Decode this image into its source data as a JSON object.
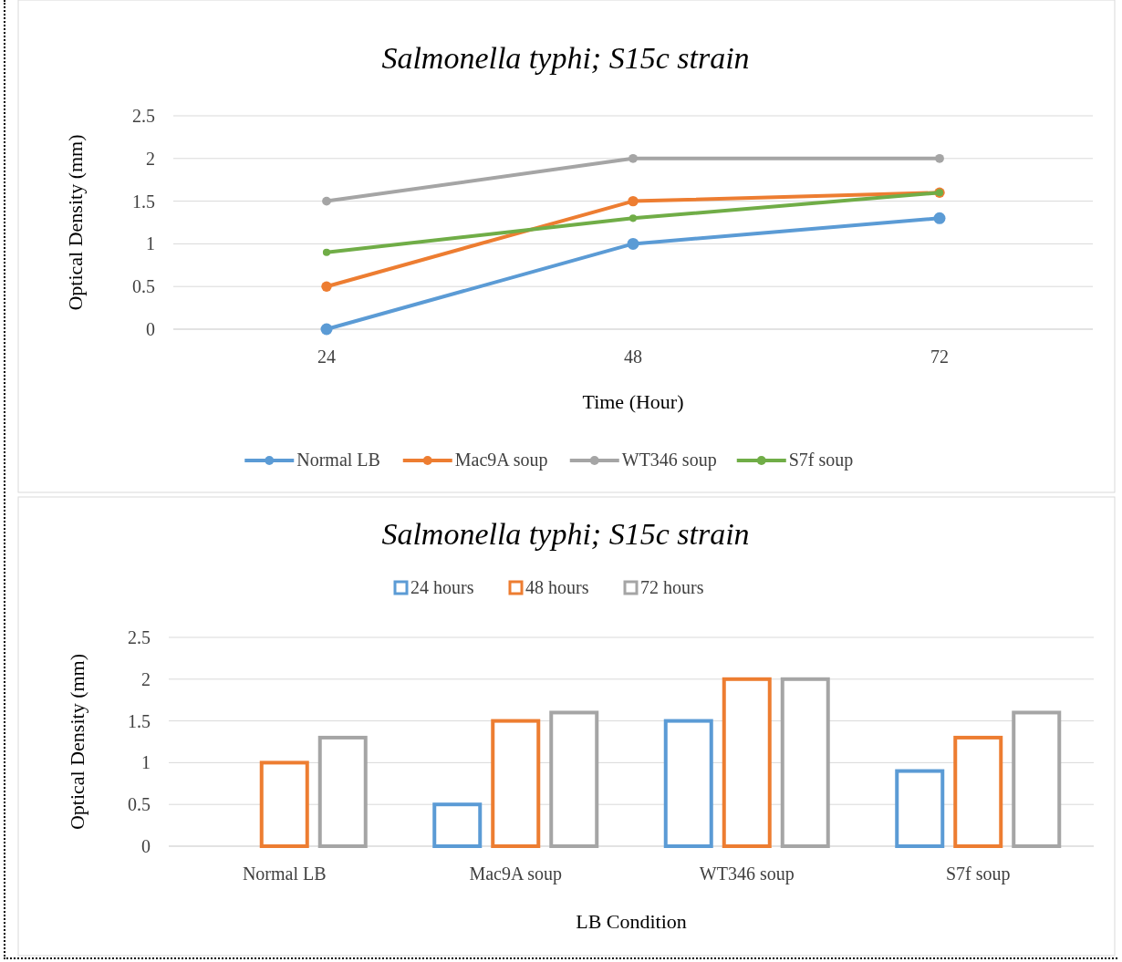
{
  "chart_data": [
    {
      "type": "line",
      "title": "Salmonella typhi; S15c strain",
      "xlabel": "Time (Hour)",
      "ylabel": "Optical Density (mm)",
      "categories": [
        "24",
        "48",
        "72"
      ],
      "ylim": [
        0,
        2.5
      ],
      "yticks": [
        0,
        0.5,
        1,
        1.5,
        2,
        2.5
      ],
      "grid": "y",
      "legend": "bottom",
      "marker": "circle",
      "line_style": "solid",
      "series": [
        {
          "name": "Normal LB",
          "color": "#5b9bd5",
          "values": [
            0,
            1,
            1.3
          ]
        },
        {
          "name": "Mac9A soup",
          "color": "#ed7d31",
          "values": [
            0.5,
            1.5,
            1.6
          ]
        },
        {
          "name": "WT346 soup",
          "color": "#a5a5a5",
          "values": [
            1.5,
            2,
            2
          ]
        },
        {
          "name": "S7f soup",
          "color": "#70ad47",
          "values": [
            0.9,
            1.3,
            1.6
          ]
        }
      ]
    },
    {
      "type": "bar",
      "title": "Salmonella typhi; S15c strain",
      "xlabel": "LB Condition",
      "ylabel": "Optical Density (mm)",
      "categories": [
        "Normal LB",
        "Mac9A soup",
        "WT346 soup",
        "S7f soup"
      ],
      "ylim": [
        0,
        2.5
      ],
      "yticks": [
        0,
        0.5,
        1,
        1.5,
        2,
        2.5
      ],
      "grid": "y",
      "legend": "top",
      "series": [
        {
          "name": "24 hours",
          "color": "#5b9bd5",
          "values": [
            0,
            0.5,
            1.5,
            0.9
          ]
        },
        {
          "name": "48 hours",
          "color": "#ed7d31",
          "values": [
            1,
            1.5,
            2,
            1.3
          ]
        },
        {
          "name": "72 hours",
          "color": "#a5a5a5",
          "values": [
            1.3,
            1.6,
            2,
            1.6
          ]
        }
      ]
    }
  ]
}
